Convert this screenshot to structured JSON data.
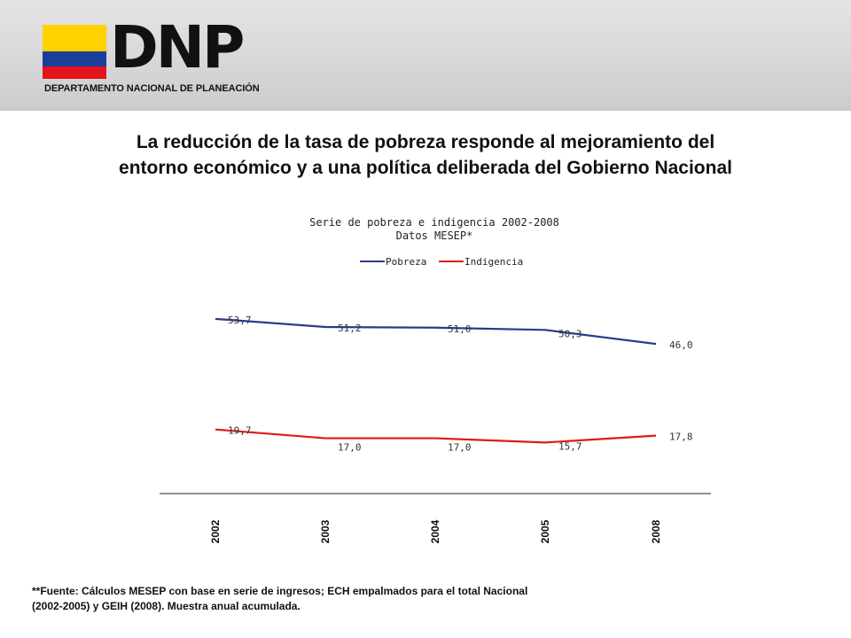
{
  "header": {
    "logo_word": "DNP",
    "logo_subtitle": "DEPARTAMENTO NACIONAL DE PLANEACIÓN",
    "flag_colors": [
      "#ffd200",
      "#1a3f9a",
      "#e3131b"
    ]
  },
  "main_title": {
    "line1": "La reducción de la tasa de pobreza responde al mejoramiento del",
    "line2": "entorno económico y a una política deliberada del Gobierno Nacional"
  },
  "chart_data": {
    "type": "line",
    "title": "Serie de pobreza e indigencia 2002-2008",
    "subtitle": "Datos MESEP*",
    "categories": [
      "2002",
      "2003",
      "2004",
      "2005",
      "2008"
    ],
    "series": [
      {
        "name": "Pobreza",
        "color": "#2b3a8c",
        "values": [
          53.7,
          51.2,
          51.0,
          50.3,
          46.0
        ],
        "labels": [
          "53,7",
          "51,2",
          "51,0",
          "50,3",
          "46,0"
        ]
      },
      {
        "name": "Indigencia",
        "color": "#e31a1c",
        "values": [
          19.7,
          17.0,
          17.0,
          15.7,
          17.8
        ],
        "labels": [
          "19,7",
          "17,0",
          "17,0",
          "15,7",
          "17,8"
        ]
      }
    ],
    "ylim": [
      0,
      70
    ],
    "grid": false,
    "legend": "top"
  },
  "footnote": {
    "line1": "**Fuente: Cálculos MESEP con base en serie de ingresos; ECH empalmados para el total Nacional",
    "line2": "(2002-2005)  y GEIH (2008).  Muestra anual acumulada."
  }
}
